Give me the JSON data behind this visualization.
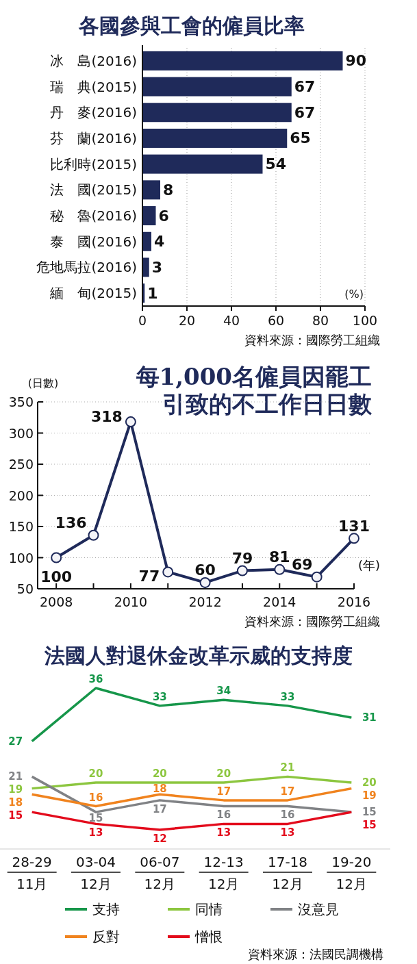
{
  "chart_data": [
    {
      "type": "bar",
      "orientation": "horizontal",
      "title": "各國參與工會的僱員比率",
      "categories": [
        "冰　島(2016)",
        "瑞　典(2015)",
        "丹　麥(2016)",
        "芬　蘭(2016)",
        "比利時(2015)",
        "法　國(2015)",
        "秘　魯(2016)",
        "泰　國(2016)",
        "危地馬拉(2016)",
        "緬　甸(2015)"
      ],
      "values": [
        90,
        67,
        67,
        65,
        54,
        8,
        6,
        4,
        3,
        1
      ],
      "color": "#1f2a5a",
      "xlim": [
        0,
        100
      ],
      "xticks": [
        0,
        20,
        40,
        60,
        80,
        100
      ],
      "grid": "x",
      "data_labels": true,
      "xlabel": "(%)",
      "annotations": [
        "資料來源：國際勞工組織"
      ]
    },
    {
      "type": "line",
      "title": "每1,000名僱員因罷工引致的不工作日日數",
      "x": [
        2008,
        2009,
        2010,
        2011,
        2012,
        2013,
        2014,
        2015,
        2016
      ],
      "series": [
        {
          "color": "#1f2a5a",
          "values": [
            100,
            136,
            318,
            77,
            60,
            79,
            81,
            69,
            131
          ]
        }
      ],
      "xlim": [
        2007.5,
        2016
      ],
      "xticks": [
        2008,
        {
          "value": 2009,
          "label": null
        },
        2010,
        {
          "value": 2011,
          "label": null
        },
        2012,
        {
          "value": 2013,
          "label": null
        },
        2014,
        {
          "value": 2015,
          "label": null
        },
        2016
      ],
      "ylim": [
        50,
        350
      ],
      "yticks": [
        50,
        100,
        150,
        200,
        250,
        300,
        350
      ],
      "grid": "y",
      "marker": "circle",
      "data_labels": true,
      "ylabel": "(日數)",
      "xlabel": "(年)",
      "annotations": [
        "資料來源：國際勞工組織"
      ]
    },
    {
      "type": "line",
      "title": "法國人對退休金改革示威的支持度",
      "categories": [
        "28-29\n11月",
        "03-04\n12月",
        "06-07\n12月",
        "12-13\n12月",
        "17-18\n12月",
        "19-20\n12月"
      ],
      "series": [
        {
          "name": "支持",
          "color": "#16964a",
          "values": [
            27,
            36,
            33,
            34,
            33,
            31
          ]
        },
        {
          "name": "同情",
          "color": "#8cc63f",
          "values": [
            19,
            20,
            20,
            20,
            21,
            20
          ]
        },
        {
          "name": "沒意見",
          "color": "#808285",
          "values": [
            21,
            15,
            17,
            16,
            16,
            15
          ]
        },
        {
          "name": "反對",
          "color": "#f0831e",
          "values": [
            18,
            16,
            18,
            17,
            17,
            19
          ]
        },
        {
          "name": "憎恨",
          "color": "#e30b1c",
          "values": [
            15,
            13,
            12,
            13,
            13,
            15
          ]
        }
      ],
      "data_labels": true,
      "legend": "bottom",
      "annotations": [
        "資料來源：法國民調機構"
      ]
    }
  ]
}
